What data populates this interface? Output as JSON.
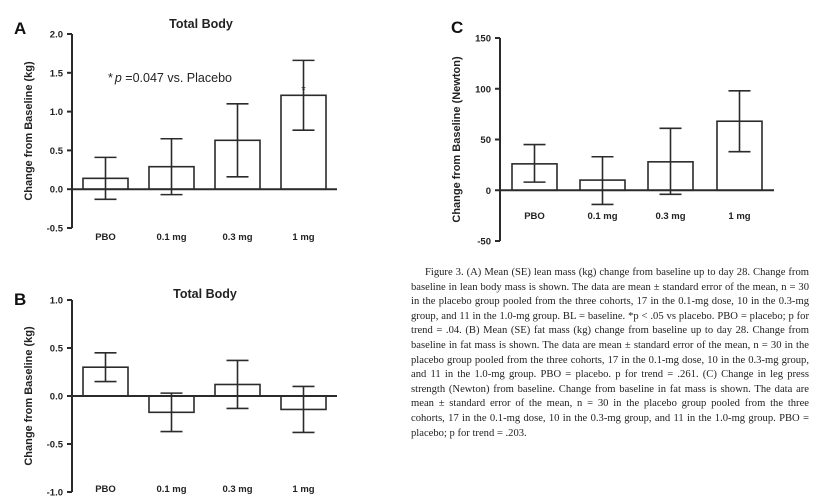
{
  "chart_data": [
    {
      "type": "bar",
      "panel_label": "A",
      "title": "Total Body",
      "xlabel": "",
      "ylabel": "Change from Baseline (kg)",
      "categories": [
        "PBO",
        "0.1 mg",
        "0.3 mg",
        "1 mg"
      ],
      "values": [
        0.14,
        0.29,
        0.63,
        1.21
      ],
      "error_upper": [
        0.41,
        0.65,
        1.1,
        1.66
      ],
      "error_lower": [
        -0.13,
        -0.07,
        0.16,
        0.76
      ],
      "ylim": [
        -0.5,
        2.0
      ],
      "yticks": [
        -0.5,
        0.0,
        0.5,
        1.0,
        1.5,
        2.0
      ],
      "ytick_labels": [
        "-0.5",
        "0.0",
        "0.5",
        "1.0",
        "1.5",
        "2.0"
      ],
      "significance_markers": [
        "",
        "",
        "",
        "*"
      ],
      "annotation": {
        "star": "*",
        "p": "p",
        "text": " =0.047 vs. Placebo"
      },
      "grid": false
    },
    {
      "type": "bar",
      "panel_label": "B",
      "title": "Total Body",
      "xlabel": "",
      "ylabel": "Change from Baseline (kg)",
      "categories": [
        "PBO",
        "0.1 mg",
        "0.3 mg",
        "1 mg"
      ],
      "values": [
        0.3,
        -0.17,
        0.12,
        -0.14
      ],
      "error_upper": [
        0.45,
        0.03,
        0.37,
        0.1
      ],
      "error_lower": [
        0.15,
        -0.37,
        -0.13,
        -0.38
      ],
      "ylim": [
        -1.0,
        1.0
      ],
      "yticks": [
        -1.0,
        -0.5,
        0.0,
        0.5,
        1.0
      ],
      "ytick_labels": [
        "-1.0",
        "-0.5",
        "0.0",
        "0.5",
        "1.0"
      ],
      "grid": false
    },
    {
      "type": "bar",
      "panel_label": "C",
      "title": "",
      "xlabel": "",
      "ylabel": "Change from Baseline (Newton)",
      "categories": [
        "PBO",
        "0.1 mg",
        "0.3 mg",
        "1 mg"
      ],
      "values": [
        26,
        10,
        28,
        68
      ],
      "error_upper": [
        45,
        33,
        61,
        98
      ],
      "error_lower": [
        8,
        -14,
        -4,
        38
      ],
      "ylim": [
        -50,
        150
      ],
      "yticks": [
        -50,
        0,
        50,
        100,
        150
      ],
      "ytick_labels": [
        "-50",
        "0",
        "50",
        "100",
        "150"
      ],
      "grid": false
    }
  ],
  "caption": "Figure 3.  (A) Mean (SE) lean mass (kg) change from baseline up to day 28. Change from baseline in lean body mass is shown. The data are mean ± standard error of the mean, n = 30 in the placebo group pooled from the three cohorts, 17 in the 0.1-mg dose, 10 in the 0.3-mg group, and 11 in the 1.0-mg group. BL = baseline. *p < .05 vs placebo. PBO = placebo; p for trend = .04. (B) Mean (SE) fat mass (kg) change from baseline up to day 28. Change from baseline in fat mass is shown. The data are mean ± standard error of the mean, n = 30 in the placebo group pooled from the three cohorts, 17 in the 0.1-mg dose, 10 in the 0.3-mg group, and 11 in the 1.0-mg group. PBO = placebo. p for trend = .261. (C) Change in leg press strength (Newton) from baseline. Change from baseline in fat mass is shown. The data are mean ± standard error of the mean, n = 30 in the placebo group pooled from the three cohorts, 17 in the 0.1-mg dose, 10 in the 0.3-mg group, and 11 in the 1.0-mg group. PBO = placebo; p for trend = .203."
}
